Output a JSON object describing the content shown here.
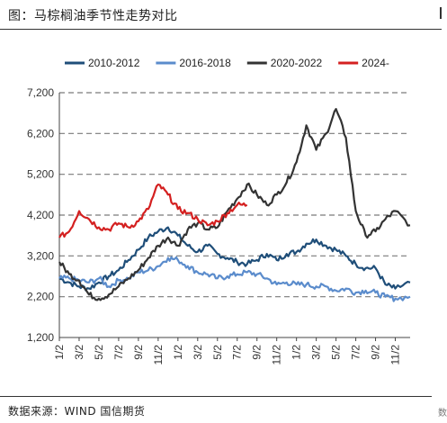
{
  "header": {
    "title": "图：马棕榈油季节性走势对比"
  },
  "footer": {
    "source": "数据来源：WIND 国信期货",
    "cut_char": "数"
  },
  "chart_data": {
    "type": "line",
    "title": "",
    "xlabel": "",
    "ylabel": "",
    "ylim": [
      1200,
      7200
    ],
    "yticks": [
      1200,
      2200,
      3200,
      4200,
      5200,
      6200,
      7200
    ],
    "y_tick_labels": [
      "1,200",
      "2,200",
      "3,200",
      "4,200",
      "5,200",
      "6,200",
      "7,200"
    ],
    "x_tick_labels": [
      "1/2",
      "3/2",
      "5/2",
      "7/2",
      "9/2",
      "11/2",
      "1/2",
      "3/2",
      "5/2",
      "7/2",
      "9/2",
      "11/2",
      "1/2",
      "3/2",
      "5/2",
      "7/2",
      "9/2",
      "11/2"
    ],
    "x_unit": "month index over a 36-month cycle (0 = 1/2 of year 1)",
    "grid": "horizontal dashed",
    "legend_position": "top",
    "series": [
      {
        "name": "2010-2012",
        "color": "#1f4e79",
        "x": [
          0,
          1,
          2,
          3,
          4,
          5,
          6,
          7,
          8,
          9,
          10,
          11,
          12,
          13,
          14,
          15,
          16,
          17,
          18,
          19,
          20,
          21,
          22,
          23,
          24,
          25,
          26,
          27,
          28,
          29,
          30,
          31,
          32,
          33,
          34,
          35.5
        ],
        "values": [
          2650,
          2550,
          2450,
          2400,
          2550,
          2700,
          2850,
          3100,
          3350,
          3650,
          3800,
          3900,
          3700,
          3450,
          3300,
          3450,
          3250,
          3150,
          3050,
          3000,
          3100,
          3250,
          3100,
          3250,
          3300,
          3500,
          3600,
          3450,
          3350,
          3200,
          3000,
          2900,
          2900,
          2500,
          2400,
          2550
        ]
      },
      {
        "name": "2016-2018",
        "color": "#5b8ccc",
        "x": [
          0,
          1,
          2,
          3,
          4,
          5,
          6,
          7,
          8,
          9,
          10,
          11,
          12,
          13,
          14,
          15,
          16,
          17,
          18,
          19,
          20,
          21,
          22,
          23,
          24,
          25,
          26,
          27,
          28,
          29,
          30,
          31,
          32,
          33,
          34,
          35.5
        ],
        "values": [
          2650,
          2650,
          2600,
          2550,
          2650,
          2450,
          2600,
          2650,
          2800,
          2850,
          2950,
          3150,
          3100,
          2950,
          2800,
          2750,
          2650,
          2700,
          2750,
          2800,
          2750,
          2650,
          2500,
          2550,
          2500,
          2500,
          2450,
          2450,
          2350,
          2400,
          2300,
          2350,
          2300,
          2200,
          2150,
          2200
        ]
      },
      {
        "name": "2020-2022",
        "color": "#333333",
        "x": [
          0,
          1,
          2,
          3,
          4,
          5,
          6,
          7,
          8,
          9,
          10,
          11,
          12,
          13,
          14,
          15,
          16,
          17,
          18,
          19,
          20,
          21,
          22,
          23,
          24,
          25,
          26,
          27,
          28,
          29,
          30,
          31,
          32,
          33,
          34,
          35.5
        ],
        "values": [
          3050,
          2750,
          2600,
          2250,
          2150,
          2250,
          2450,
          2650,
          2850,
          3150,
          3450,
          3650,
          3450,
          3850,
          4000,
          3850,
          3900,
          4300,
          4600,
          4950,
          4700,
          4450,
          4700,
          5000,
          5500,
          6400,
          5800,
          6200,
          6800,
          6100,
          4300,
          3700,
          3800,
          4100,
          4300,
          3950
        ]
      },
      {
        "name": "2024-",
        "color": "#d42020",
        "x": [
          0,
          1,
          2,
          3,
          4,
          5,
          6,
          7,
          8,
          9,
          10,
          11,
          12,
          13,
          14,
          15,
          16,
          17,
          18,
          19
        ],
        "values": [
          3650,
          3800,
          4300,
          4100,
          3900,
          3850,
          4000,
          3900,
          4050,
          4350,
          4950,
          4700,
          4350,
          4250,
          4100,
          3950,
          4050,
          4250,
          4450,
          4450
        ]
      }
    ]
  }
}
